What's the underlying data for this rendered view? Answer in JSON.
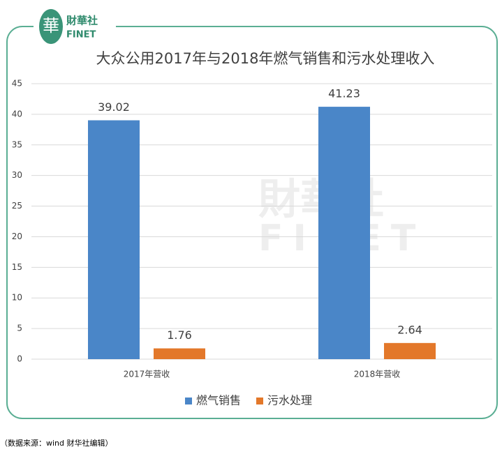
{
  "logo": {
    "mark": "華",
    "name": "財華社",
    "brand": "FINET"
  },
  "source": "（数据来源：wind  财华社编辑）",
  "chart_data": {
    "type": "bar",
    "title": "大众公用2017年与2018年燃气销售和污水处理收入",
    "categories": [
      "2017年营收",
      "2018年营收"
    ],
    "series": [
      {
        "name": "燃气销售",
        "color": "#4a86c8",
        "values": [
          39.02,
          41.23
        ]
      },
      {
        "name": "污水处理",
        "color": "#e3782a",
        "values": [
          1.76,
          2.64
        ]
      }
    ],
    "ylim": [
      0,
      45
    ],
    "yticks": [
      0,
      5,
      10,
      15,
      20,
      25,
      30,
      35,
      40,
      45
    ],
    "grid": true,
    "legend": "bottom"
  }
}
